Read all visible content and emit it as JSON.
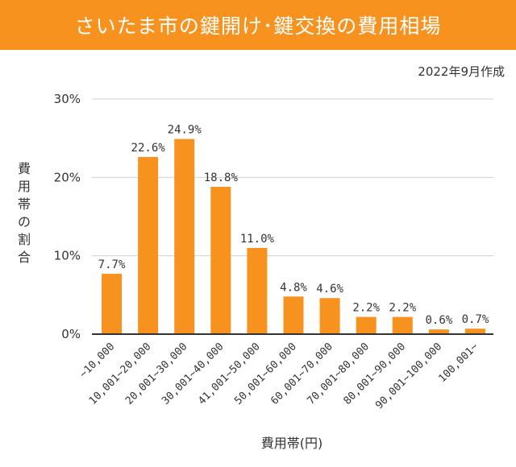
{
  "header": {
    "title": "さいたま市の鍵開け･鍵交換の費用相場",
    "date_note": "2022年9月作成"
  },
  "colors": {
    "accent": "#f7921e",
    "bar": "#f7921e",
    "axis": "#333333",
    "grid": "#d0d0d0"
  },
  "chart_data": {
    "type": "bar",
    "title": "さいたま市の鍵開け･鍵交換の費用相場",
    "xlabel": "費用帯(円)",
    "ylabel": "費用帯の割合",
    "ylim": [
      0,
      30
    ],
    "yticks": [
      0,
      10,
      20,
      30
    ],
    "ytick_labels": [
      "0%",
      "10%",
      "20%",
      "30%"
    ],
    "grid": true,
    "categories": [
      "~10,000",
      "10,001~20,000",
      "20,001~30,000",
      "30,001~40,000",
      "41,001~50,000",
      "50,001~60,000",
      "60,001~70,000",
      "70,001~80,000",
      "80,001~90,000",
      "90,001~100,000",
      "100,001~"
    ],
    "values": [
      7.7,
      22.6,
      24.9,
      18.8,
      11.0,
      4.8,
      4.6,
      2.2,
      2.2,
      0.6,
      0.7
    ],
    "value_labels": [
      "7.7%",
      "22.6%",
      "24.9%",
      "18.8%",
      "11.0%",
      "4.8%",
      "4.6%",
      "2.2%",
      "2.2%",
      "0.6%",
      "0.7%"
    ]
  }
}
